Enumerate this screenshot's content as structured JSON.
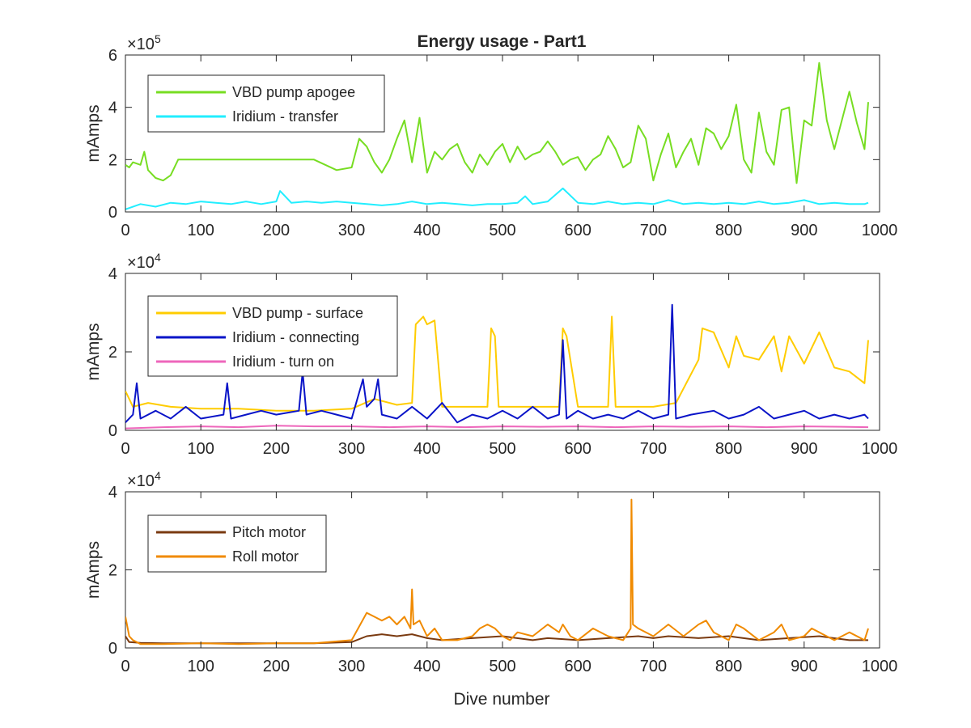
{
  "figure": {
    "title": "Energy usage - Part1",
    "xlabel": "Dive number"
  },
  "chart_data": [
    {
      "type": "line",
      "ylabel": "mAmps",
      "exponent_base": "×10",
      "exponent": "5",
      "xlim": [
        0,
        1000
      ],
      "ylim": [
        0,
        6
      ],
      "xticks": [
        0,
        100,
        200,
        300,
        400,
        500,
        600,
        700,
        800,
        900,
        1000
      ],
      "yticks": [
        0,
        2,
        4,
        6
      ],
      "grid": false,
      "legend_position": "top-left",
      "series": [
        {
          "name": "VBD pump apogee",
          "color": "#77dd22",
          "x": [
            0,
            5,
            10,
            20,
            25,
            30,
            40,
            50,
            60,
            70,
            100,
            150,
            200,
            250,
            280,
            300,
            310,
            320,
            330,
            340,
            350,
            360,
            370,
            380,
            390,
            400,
            410,
            420,
            430,
            440,
            450,
            460,
            470,
            480,
            490,
            500,
            510,
            520,
            530,
            540,
            550,
            560,
            570,
            580,
            590,
            600,
            610,
            620,
            630,
            640,
            650,
            660,
            670,
            680,
            690,
            700,
            710,
            720,
            730,
            740,
            750,
            760,
            770,
            780,
            790,
            800,
            810,
            820,
            830,
            840,
            850,
            860,
            870,
            880,
            890,
            900,
            910,
            920,
            930,
            940,
            950,
            960,
            970,
            980,
            985
          ],
          "y": [
            1.8,
            1.7,
            1.9,
            1.8,
            2.3,
            1.6,
            1.3,
            1.2,
            1.4,
            2.0,
            2.0,
            2.0,
            2.0,
            2.0,
            1.6,
            1.7,
            2.8,
            2.5,
            1.9,
            1.5,
            2.0,
            2.8,
            3.5,
            1.9,
            3.6,
            1.5,
            2.3,
            2.0,
            2.4,
            2.6,
            1.9,
            1.5,
            2.2,
            1.8,
            2.3,
            2.6,
            1.9,
            2.5,
            2.0,
            2.2,
            2.3,
            2.7,
            2.3,
            1.8,
            2.0,
            2.1,
            1.6,
            2.0,
            2.2,
            2.9,
            2.4,
            1.7,
            1.9,
            3.3,
            2.8,
            1.2,
            2.2,
            3.0,
            1.7,
            2.3,
            2.8,
            1.8,
            3.2,
            3.0,
            2.4,
            2.9,
            4.1,
            2.0,
            1.5,
            3.8,
            2.3,
            1.8,
            3.9,
            4.0,
            1.1,
            3.5,
            3.3,
            5.7,
            3.5,
            2.4,
            3.5,
            4.6,
            3.4,
            2.4,
            4.2
          ]
        },
        {
          "name": "Iridium - transfer",
          "color": "#22eeff",
          "x": [
            0,
            20,
            40,
            60,
            80,
            100,
            120,
            140,
            160,
            180,
            200,
            205,
            220,
            240,
            260,
            280,
            300,
            320,
            340,
            360,
            380,
            400,
            420,
            440,
            460,
            480,
            500,
            520,
            530,
            540,
            560,
            580,
            600,
            620,
            640,
            660,
            680,
            700,
            720,
            740,
            760,
            780,
            800,
            820,
            840,
            860,
            880,
            900,
            920,
            940,
            960,
            980,
            985
          ],
          "y": [
            0.1,
            0.3,
            0.2,
            0.35,
            0.3,
            0.4,
            0.35,
            0.3,
            0.4,
            0.3,
            0.4,
            0.8,
            0.35,
            0.4,
            0.35,
            0.4,
            0.35,
            0.3,
            0.25,
            0.3,
            0.4,
            0.3,
            0.35,
            0.3,
            0.25,
            0.3,
            0.3,
            0.35,
            0.6,
            0.3,
            0.4,
            0.9,
            0.35,
            0.3,
            0.4,
            0.3,
            0.35,
            0.3,
            0.45,
            0.3,
            0.35,
            0.3,
            0.35,
            0.3,
            0.4,
            0.3,
            0.35,
            0.45,
            0.3,
            0.35,
            0.3,
            0.3,
            0.35
          ]
        }
      ]
    },
    {
      "type": "line",
      "ylabel": "mAmps",
      "exponent_base": "×10",
      "exponent": "4",
      "xlim": [
        0,
        1000
      ],
      "ylim": [
        0,
        4
      ],
      "xticks": [
        0,
        100,
        200,
        300,
        400,
        500,
        600,
        700,
        800,
        900,
        1000
      ],
      "yticks": [
        0,
        2,
        4
      ],
      "grid": false,
      "legend_position": "top-left",
      "series": [
        {
          "name": "VBD pump - surface",
          "color": "#ffcc00",
          "x": [
            0,
            5,
            10,
            30,
            60,
            100,
            150,
            200,
            250,
            300,
            330,
            360,
            380,
            385,
            395,
            400,
            410,
            420,
            440,
            480,
            485,
            490,
            495,
            520,
            560,
            575,
            580,
            585,
            600,
            640,
            645,
            650,
            700,
            730,
            760,
            765,
            780,
            800,
            810,
            820,
            840,
            860,
            870,
            880,
            900,
            920,
            940,
            960,
            980,
            985
          ],
          "y": [
            1.0,
            0.8,
            0.6,
            0.7,
            0.6,
            0.55,
            0.55,
            0.5,
            0.5,
            0.55,
            0.8,
            0.65,
            0.7,
            2.7,
            2.9,
            2.7,
            2.8,
            0.6,
            0.6,
            0.6,
            2.6,
            2.4,
            0.6,
            0.6,
            0.6,
            0.6,
            2.6,
            2.4,
            0.6,
            0.6,
            2.9,
            0.6,
            0.6,
            0.7,
            1.8,
            2.6,
            2.5,
            1.6,
            2.4,
            1.9,
            1.8,
            2.4,
            1.5,
            2.4,
            1.7,
            2.5,
            1.6,
            1.5,
            1.2,
            2.3
          ]
        },
        {
          "name": "Iridium - connecting",
          "color": "#0a14c8",
          "x": [
            0,
            10,
            15,
            20,
            40,
            60,
            80,
            100,
            130,
            135,
            140,
            160,
            180,
            200,
            230,
            235,
            240,
            260,
            280,
            300,
            315,
            320,
            330,
            335,
            340,
            360,
            380,
            400,
            420,
            440,
            460,
            480,
            500,
            520,
            540,
            560,
            575,
            580,
            585,
            600,
            620,
            640,
            660,
            680,
            700,
            720,
            725,
            730,
            750,
            780,
            800,
            820,
            840,
            860,
            880,
            900,
            920,
            940,
            960,
            980,
            985
          ],
          "y": [
            0.2,
            0.4,
            1.2,
            0.3,
            0.5,
            0.3,
            0.6,
            0.3,
            0.4,
            1.2,
            0.3,
            0.4,
            0.5,
            0.4,
            0.5,
            1.5,
            0.4,
            0.5,
            0.4,
            0.3,
            1.3,
            0.6,
            0.8,
            1.3,
            0.4,
            0.3,
            0.6,
            0.3,
            0.7,
            0.2,
            0.4,
            0.3,
            0.5,
            0.3,
            0.6,
            0.3,
            0.4,
            2.3,
            0.3,
            0.5,
            0.3,
            0.4,
            0.3,
            0.5,
            0.3,
            0.4,
            3.2,
            0.3,
            0.4,
            0.5,
            0.3,
            0.4,
            0.6,
            0.3,
            0.4,
            0.5,
            0.3,
            0.4,
            0.3,
            0.4,
            0.3
          ]
        },
        {
          "name": "Iridium - turn on",
          "color": "#ee66bb",
          "x": [
            0,
            50,
            100,
            150,
            200,
            250,
            300,
            350,
            400,
            450,
            500,
            550,
            600,
            650,
            700,
            750,
            800,
            850,
            900,
            950,
            985
          ],
          "y": [
            0.05,
            0.08,
            0.1,
            0.08,
            0.12,
            0.1,
            0.1,
            0.08,
            0.1,
            0.08,
            0.1,
            0.09,
            0.1,
            0.08,
            0.1,
            0.09,
            0.1,
            0.08,
            0.1,
            0.09,
            0.08
          ]
        }
      ]
    },
    {
      "type": "line",
      "ylabel": "mAmps",
      "exponent_base": "×10",
      "exponent": "4",
      "xlim": [
        0,
        1000
      ],
      "ylim": [
        0,
        4
      ],
      "xticks": [
        0,
        100,
        200,
        300,
        400,
        500,
        600,
        700,
        800,
        900,
        1000
      ],
      "yticks": [
        0,
        2,
        4
      ],
      "grid": false,
      "legend_position": "top-left",
      "series": [
        {
          "name": "Pitch motor",
          "color": "#7a3a10",
          "x": [
            0,
            5,
            20,
            50,
            100,
            150,
            200,
            250,
            300,
            320,
            340,
            360,
            380,
            400,
            420,
            460,
            500,
            540,
            560,
            600,
            640,
            680,
            700,
            720,
            760,
            800,
            840,
            880,
            920,
            960,
            985
          ],
          "y": [
            0.3,
            0.15,
            0.13,
            0.12,
            0.12,
            0.12,
            0.12,
            0.12,
            0.15,
            0.3,
            0.35,
            0.3,
            0.35,
            0.25,
            0.2,
            0.25,
            0.3,
            0.2,
            0.25,
            0.2,
            0.25,
            0.3,
            0.25,
            0.3,
            0.25,
            0.3,
            0.2,
            0.25,
            0.3,
            0.2,
            0.2
          ]
        },
        {
          "name": "Roll motor",
          "color": "#f08a00",
          "x": [
            0,
            5,
            10,
            20,
            50,
            100,
            150,
            200,
            250,
            300,
            320,
            330,
            340,
            350,
            360,
            370,
            378,
            380,
            382,
            390,
            400,
            410,
            420,
            440,
            460,
            470,
            480,
            490,
            500,
            510,
            520,
            540,
            560,
            575,
            580,
            590,
            600,
            620,
            640,
            660,
            670,
            671,
            673,
            680,
            700,
            720,
            740,
            760,
            770,
            780,
            800,
            810,
            820,
            840,
            860,
            870,
            880,
            900,
            910,
            920,
            940,
            960,
            980,
            985
          ],
          "y": [
            0.8,
            0.3,
            0.2,
            0.1,
            0.1,
            0.12,
            0.1,
            0.12,
            0.12,
            0.2,
            0.9,
            0.8,
            0.7,
            0.8,
            0.6,
            0.8,
            0.5,
            1.5,
            0.6,
            0.7,
            0.3,
            0.5,
            0.2,
            0.2,
            0.3,
            0.5,
            0.6,
            0.5,
            0.3,
            0.2,
            0.4,
            0.3,
            0.6,
            0.4,
            0.6,
            0.3,
            0.2,
            0.5,
            0.3,
            0.2,
            0.5,
            3.8,
            0.6,
            0.5,
            0.3,
            0.6,
            0.3,
            0.6,
            0.7,
            0.4,
            0.2,
            0.6,
            0.5,
            0.2,
            0.4,
            0.6,
            0.2,
            0.3,
            0.5,
            0.4,
            0.2,
            0.4,
            0.2,
            0.5
          ]
        }
      ]
    }
  ]
}
